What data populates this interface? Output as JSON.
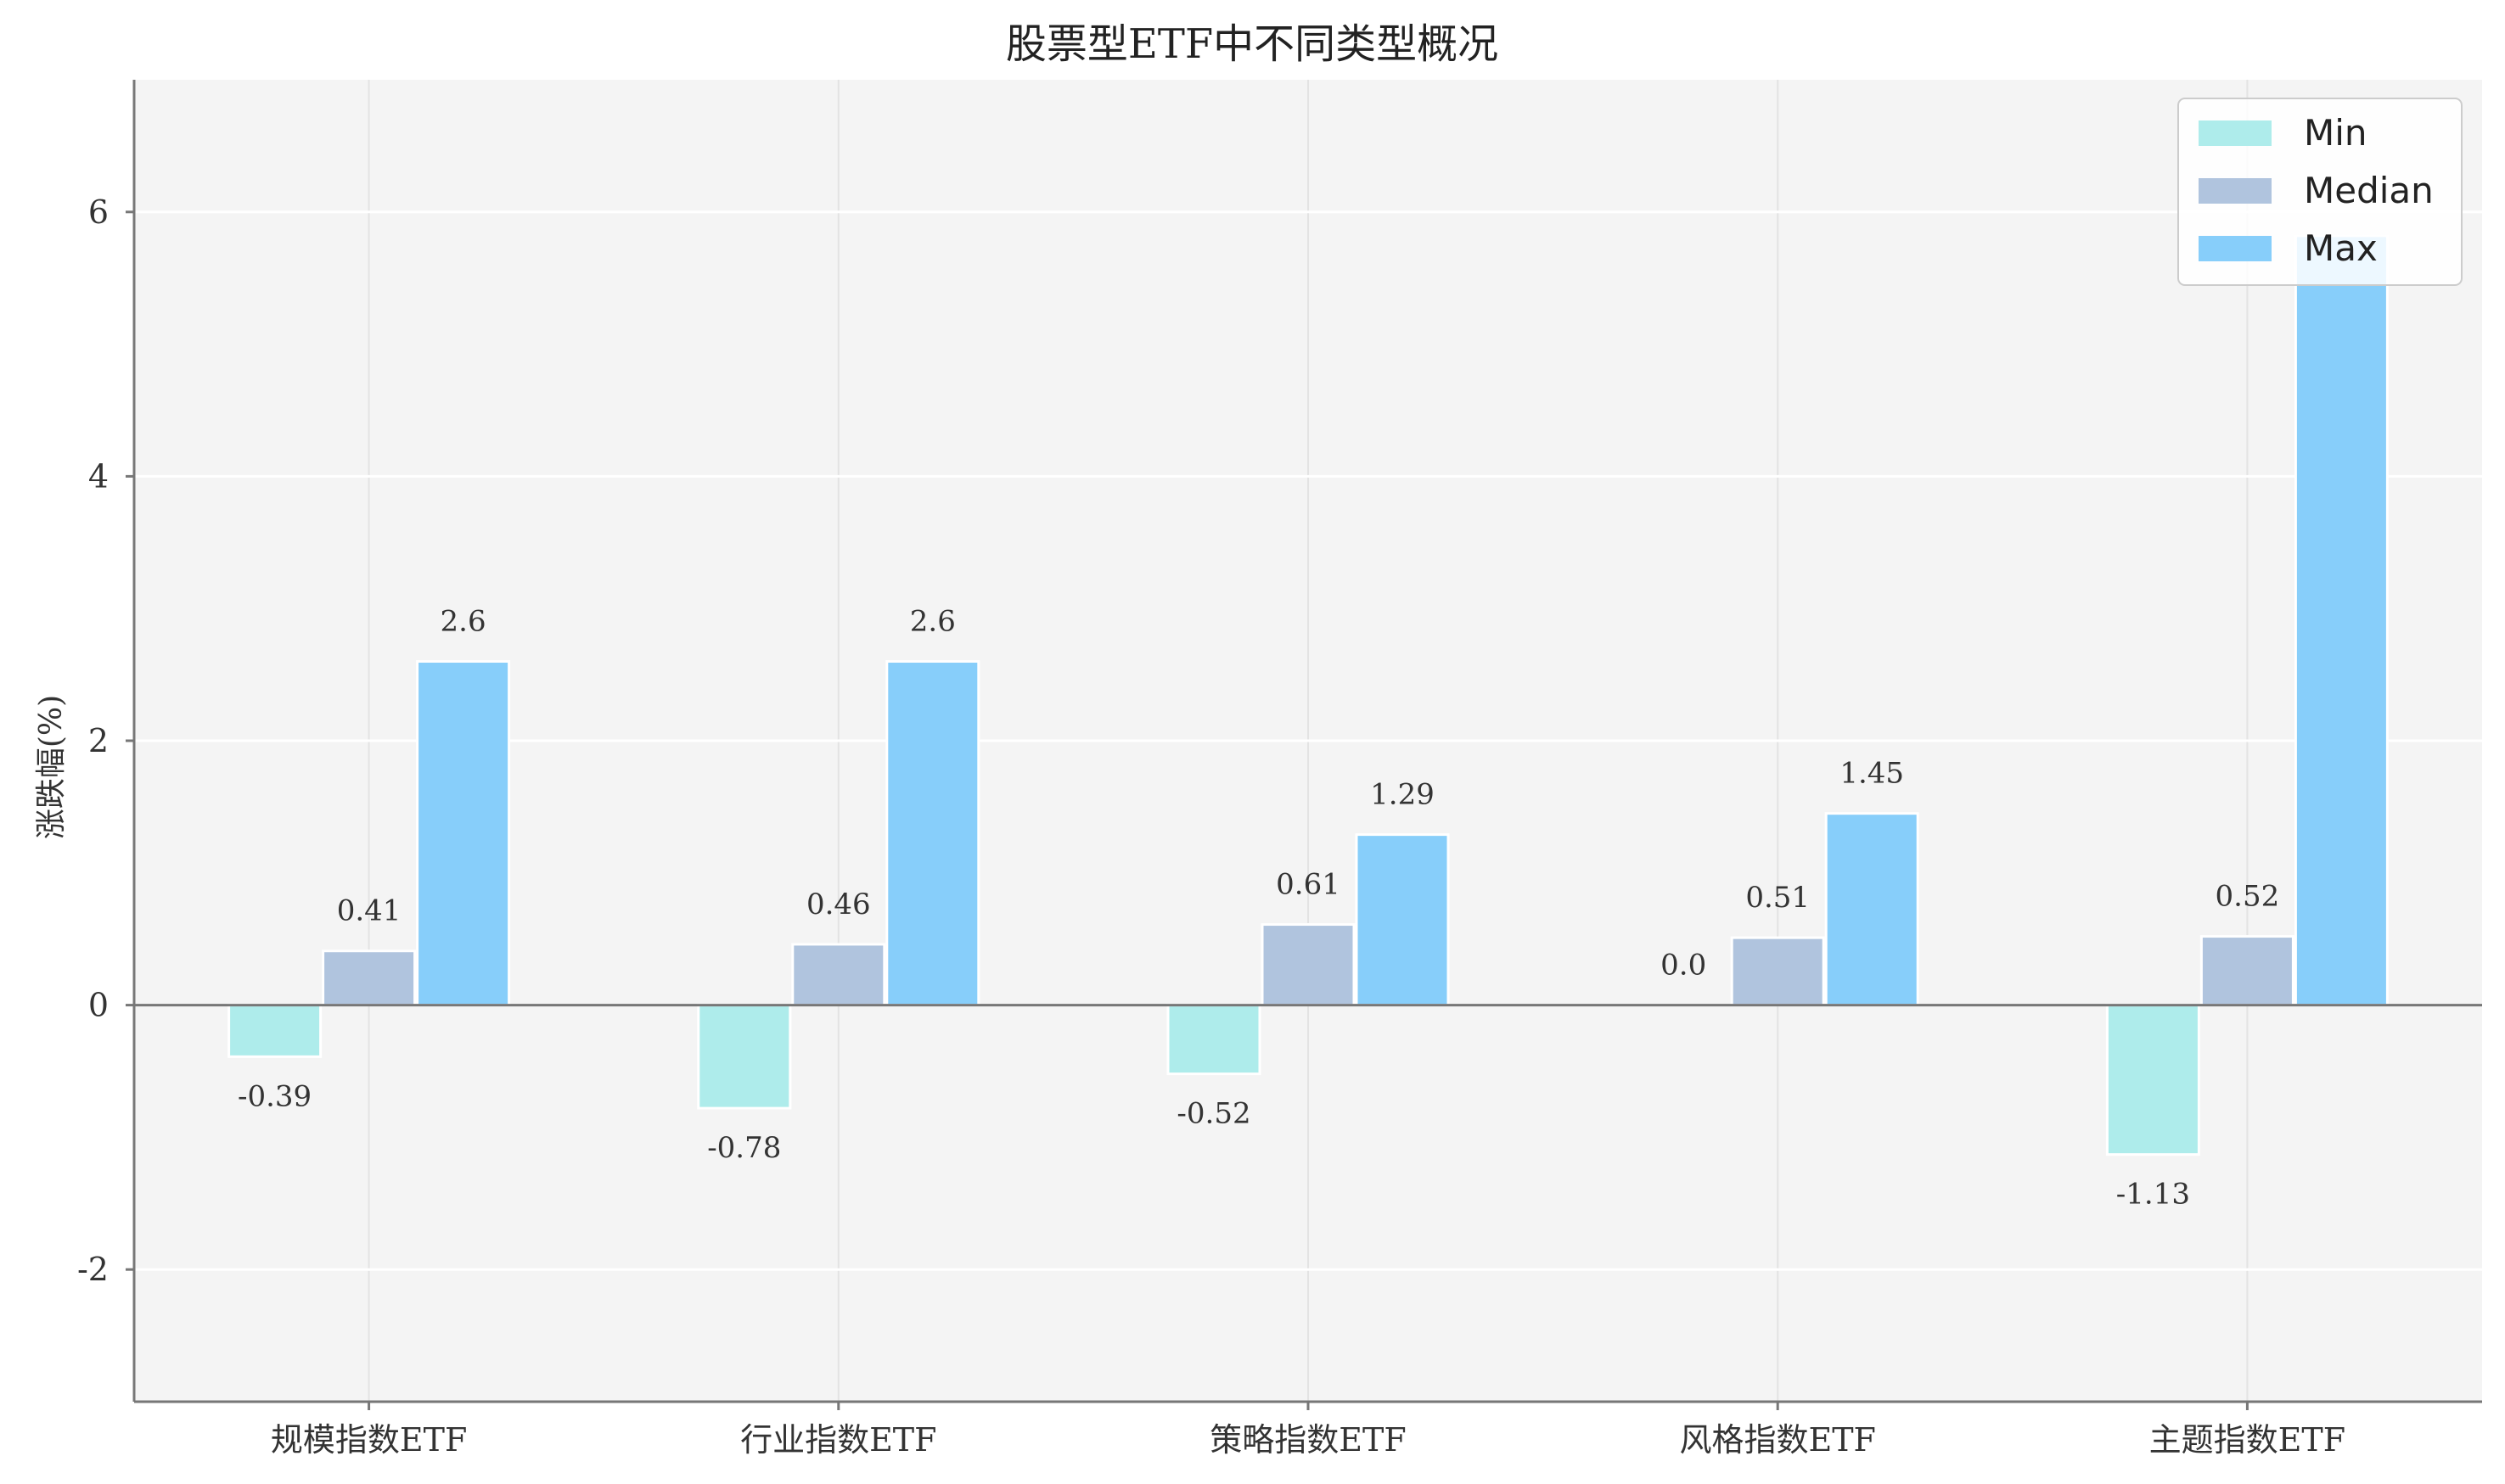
{
  "chart_data": {
    "type": "bar",
    "title": "股票型ETF中不同类型概况",
    "xlabel": "",
    "ylabel": "涨跌幅(%)",
    "categories": [
      "规模指数ETF",
      "行业指数ETF",
      "策略指数ETF",
      "风格指数ETF",
      "主题指数ETF"
    ],
    "series": [
      {
        "name": "Min",
        "color": "#aeeceb",
        "values": [
          -0.39,
          -0.78,
          -0.52,
          0.0,
          -1.13
        ]
      },
      {
        "name": "Median",
        "color": "#b0c4de",
        "values": [
          0.41,
          0.46,
          0.61,
          0.51,
          0.52
        ]
      },
      {
        "name": "Max",
        "color": "#87cefa",
        "values": [
          2.6,
          2.6,
          1.29,
          1.45,
          5.82
        ]
      }
    ],
    "data_labels": [
      [
        "-0.39",
        "-0.78",
        "-0.52",
        "0.0",
        "-1.13"
      ],
      [
        "0.41",
        "0.46",
        "0.61",
        "0.51",
        "0.52"
      ],
      [
        "2.6",
        "2.6",
        "1.29",
        "1.45",
        ""
      ]
    ],
    "ylim": [
      -3.0,
      7.0
    ],
    "yticks": [
      -2,
      0,
      2,
      4,
      6
    ],
    "grid": true,
    "legend_position": "top-right",
    "colors": {
      "background": "#f4f4f4",
      "grid": "#ffffff",
      "axis": "#777777",
      "zero_line": "#777777"
    }
  }
}
